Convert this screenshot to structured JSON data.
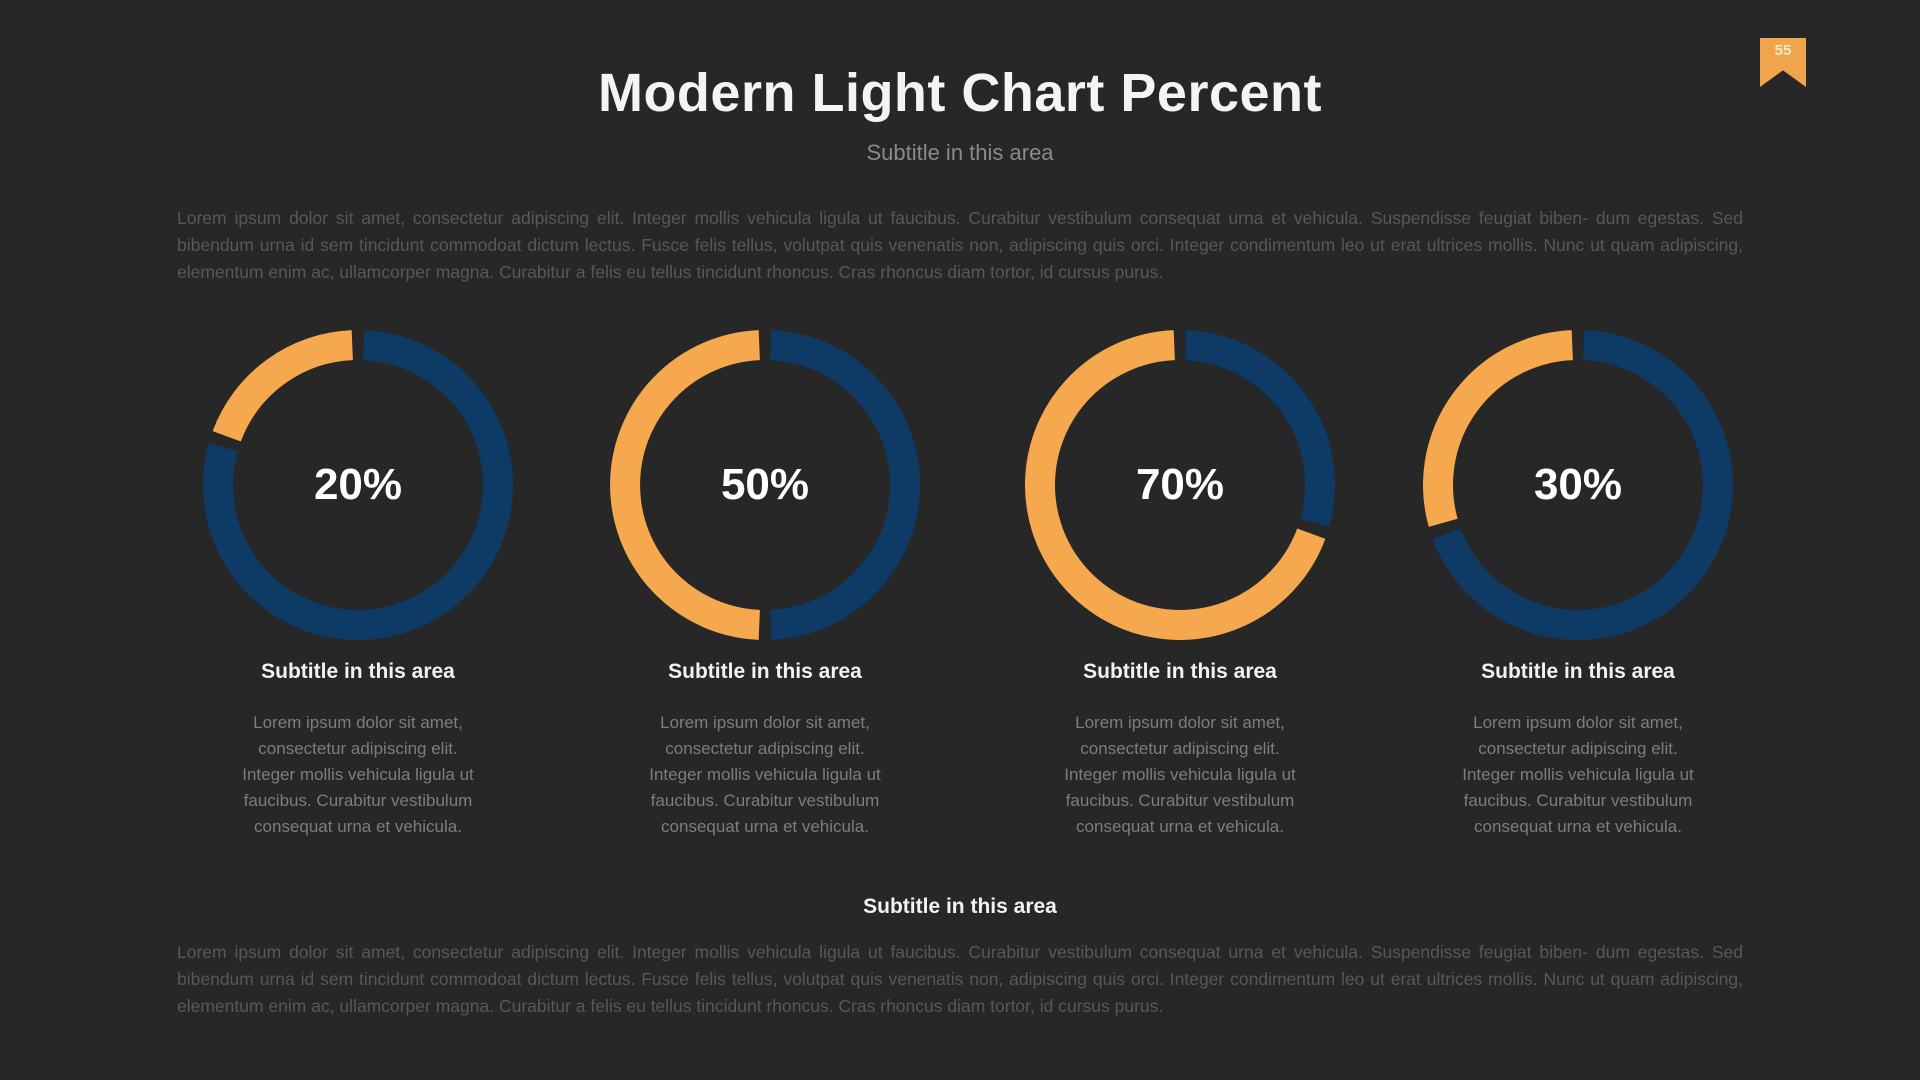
{
  "page": {
    "badge_number": "55",
    "title": "Modern Light Chart Percent",
    "subtitle": "Subtitle in this area",
    "intro_paragraph": "Lorem ipsum dolor sit amet, consectetur adipiscing elit. Integer mollis vehicula ligula ut faucibus. Curabitur vestibulum consequat urna et vehicula. Suspendisse feugiat biben- dum egestas. Sed bibendum urna id sem tincidunt commodoat dictum lectus. Fusce felis tellus, volutpat quis venenatis non, adipiscing quis orci. Integer condimentum leo ut erat ultrices mollis. Nunc ut quam adipiscing, elementum enim ac, ullamcorper magna. Curabitur a felis eu tellus tincidunt rhoncus. Cras rhoncus diam tortor, id cursus purus.",
    "footer_heading": "Subtitle in this area",
    "footer_paragraph": "Lorem ipsum dolor sit amet, consectetur adipiscing elit. Integer mollis vehicula ligula ut faucibus. Curabitur vestibulum consequat urna et vehicula. Suspendisse feugiat biben- dum egestas. Sed bibendum urna id sem tincidunt commodoat dictum lectus. Fusce felis tellus, volutpat quis venenatis non, adipiscing quis orci. Integer condimentum leo ut erat ultrices mollis. Nunc ut quam adipiscing, elementum enim ac, ullamcorper magna. Curabitur a felis eu tellus tincidunt rhoncus. Cras rhoncus diam tortor, id cursus purus."
  },
  "colors": {
    "background": "#272727",
    "value_orange": "#F5A84D",
    "remainder_navy": "#0E3A66",
    "badge_orange": "#EFA44D",
    "heading_white": "#F2F2F2",
    "body_gray": "#585858",
    "caption_gray": "#7D7D7D"
  },
  "chart_data": [
    {
      "type": "pie",
      "variant": "donut",
      "label": "20%",
      "percent": 20,
      "direction": "counterclockwise-from-top",
      "series": [
        {
          "name": "value",
          "value": 20,
          "color": "#F5A84D"
        },
        {
          "name": "remainder",
          "value": 80,
          "color": "#0E3A66"
        }
      ],
      "caption_title": "Subtitle in this area",
      "caption_text": "Lorem ipsum dolor sit amet,\nconsectetur adipiscing elit.\nInteger mollis vehicula ligula ut\nfaucibus. Curabitur vestibulum\nconsequat urna et vehicula."
    },
    {
      "type": "pie",
      "variant": "donut",
      "label": "50%",
      "percent": 50,
      "direction": "counterclockwise-from-top",
      "series": [
        {
          "name": "value",
          "value": 50,
          "color": "#F5A84D"
        },
        {
          "name": "remainder",
          "value": 50,
          "color": "#0E3A66"
        }
      ],
      "caption_title": "Subtitle in this area",
      "caption_text": "Lorem ipsum dolor sit amet,\nconsectetur adipiscing elit.\nInteger mollis vehicula ligula ut\nfaucibus. Curabitur vestibulum\nconsequat urna et vehicula."
    },
    {
      "type": "pie",
      "variant": "donut",
      "label": "70%",
      "percent": 70,
      "direction": "counterclockwise-from-top",
      "series": [
        {
          "name": "value",
          "value": 70,
          "color": "#F5A84D"
        },
        {
          "name": "remainder",
          "value": 30,
          "color": "#0E3A66"
        }
      ],
      "caption_title": "Subtitle in this area",
      "caption_text": "Lorem ipsum dolor sit amet,\nconsectetur adipiscing elit.\nInteger mollis vehicula ligula ut\nfaucibus. Curabitur vestibulum\nconsequat urna et vehicula."
    },
    {
      "type": "pie",
      "variant": "donut",
      "label": "30%",
      "percent": 30,
      "direction": "counterclockwise-from-top",
      "series": [
        {
          "name": "value",
          "value": 30,
          "color": "#F5A84D"
        },
        {
          "name": "remainder",
          "value": 70,
          "color": "#0E3A66"
        }
      ],
      "caption_title": "Subtitle in this area",
      "caption_text": "Lorem ipsum dolor sit amet,\nconsectetur adipiscing elit.\nInteger mollis vehicula ligula ut\nfaucibus. Curabitur vestibulum\nconsequat urna et vehicula."
    }
  ]
}
